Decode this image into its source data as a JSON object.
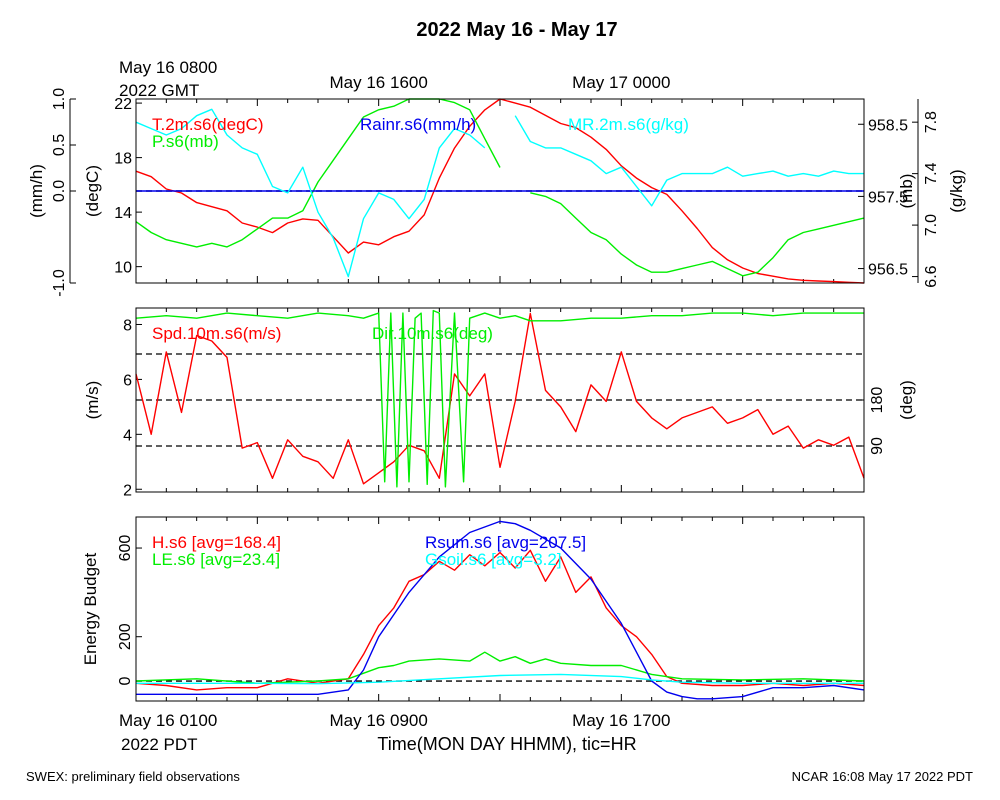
{
  "title": "2022 May 16 - May 17",
  "top_time_labels": [
    {
      "hour": 0,
      "line1": "May 16 0800",
      "line2": "2022 GMT"
    },
    {
      "hour": 8,
      "line1": "May 16 1600",
      "line2": ""
    },
    {
      "hour": 16,
      "line1": "May 17 0000",
      "line2": ""
    }
  ],
  "bottom_time_labels": [
    {
      "hour": 0,
      "line1": "May 16 0100",
      "line2": "2022 PDT"
    },
    {
      "hour": 8,
      "line1": "May 16 0900",
      "line2": ""
    },
    {
      "hour": 16,
      "line1": "May 16 1700",
      "line2": ""
    }
  ],
  "xlabel": "Time(MON DAY HHMM), tic=HR",
  "footer_left": "SWEX: preliminary field observations",
  "footer_right": "NCAR 16:08 May 17 2022 PDT",
  "colors": {
    "red": "#ff0000",
    "green": "#00ee00",
    "blue": "#0000ee",
    "cyan": "#00ffff",
    "black": "#000000"
  },
  "chart_data": [
    {
      "type": "line",
      "panel": "met",
      "x_unit": "hours since May 16 0100 PDT",
      "xlim": [
        0,
        24
      ],
      "axes": {
        "rain": {
          "label": "(mm/h)",
          "lim": [
            -1.0,
            1.0
          ],
          "ticks": [
            -1.0,
            0.0,
            0.5,
            1.0
          ],
          "tick_labels": [
            "-1.0",
            "0.0",
            "0.5",
            "1.0"
          ]
        },
        "temp": {
          "label": "(degC)",
          "lim": [
            8.8,
            22.3
          ],
          "ticks": [
            10,
            14,
            18,
            22
          ],
          "tick_labels": [
            "10",
            "14",
            "18",
            "22"
          ]
        },
        "pres": {
          "label": "(mb)",
          "lim": [
            956.3,
            958.85
          ],
          "ticks": [
            956.5,
            957.5,
            958.5
          ],
          "tick_labels": [
            "956.5",
            "957.5",
            "958.5"
          ]
        },
        "mr": {
          "label": "(g/kg)",
          "lim": [
            6.55,
            7.98
          ],
          "ticks": [
            6.6,
            7.0,
            7.4,
            7.8
          ],
          "tick_labels": [
            "6.6",
            "7.0",
            "7.4",
            "7.8"
          ]
        }
      },
      "series": [
        {
          "name": "T.2m.s6(degC)",
          "color": "red",
          "axis": "temp",
          "x": [
            0,
            0.5,
            1,
            1.5,
            2,
            2.5,
            3,
            3.5,
            4,
            4.5,
            5,
            5.5,
            6,
            6.5,
            7,
            7.5,
            8,
            8.5,
            9,
            9.5,
            10,
            10.5,
            11,
            11.5,
            12,
            12.5,
            13,
            13.5,
            14,
            14.5,
            15,
            15.5,
            16,
            16.5,
            17,
            17.5,
            18,
            18.5,
            19,
            19.5,
            20,
            20.5,
            21,
            21.5,
            22,
            22.5,
            23,
            23.5,
            24
          ],
          "y": [
            17.0,
            16.6,
            15.7,
            15.4,
            14.7,
            14.4,
            14.1,
            13.2,
            12.9,
            12.5,
            13.2,
            13.5,
            13.4,
            12.2,
            11.0,
            11.8,
            11.6,
            12.2,
            12.6,
            13.8,
            16.5,
            18.7,
            20.3,
            21.5,
            22.3,
            22.0,
            21.7,
            21.1,
            20.5,
            20.2,
            19.5,
            18.6,
            17.4,
            16.5,
            15.8,
            15.3,
            14.1,
            12.8,
            11.4,
            10.5,
            9.9,
            9.5,
            9.3,
            9.1,
            9.0,
            8.95,
            8.9,
            8.85,
            8.8
          ]
        },
        {
          "name": "P.s6(mb)",
          "color": "green",
          "axis": "pres",
          "x": [
            0,
            0.5,
            1,
            1.5,
            2,
            2.5,
            3,
            3.5,
            4,
            4.5,
            5,
            5.5,
            6,
            6.5,
            7,
            7.5,
            8,
            8.5,
            9,
            9.5,
            10,
            10.5,
            11,
            11.5,
            12,
            12.5,
            13,
            13.5,
            14,
            14.5,
            15,
            15.5,
            16,
            16.5,
            17,
            17.5,
            18,
            18.5,
            19,
            19.5,
            20,
            20.5,
            21,
            21.5,
            22,
            22.5,
            23,
            23.5,
            24
          ],
          "y": [
            957.15,
            957.0,
            956.9,
            956.85,
            956.8,
            956.85,
            956.8,
            956.9,
            957.05,
            957.2,
            957.2,
            957.3,
            957.7,
            958.0,
            958.3,
            958.6,
            958.7,
            958.75,
            958.85,
            958.85,
            958.85,
            958.8,
            958.7,
            958.3,
            957.9,
            null,
            957.55,
            957.5,
            957.4,
            957.2,
            957.0,
            956.9,
            956.7,
            956.55,
            956.45,
            956.45,
            956.5,
            956.55,
            956.6,
            956.5,
            956.4,
            956.45,
            956.65,
            956.9,
            957.0,
            957.05,
            957.1,
            957.15,
            957.2
          ]
        },
        {
          "name": "Rainr.s6(mm/h)",
          "color": "blue",
          "axis": "rain",
          "x": [
            0,
            24
          ],
          "y": [
            0.0,
            0.0
          ]
        },
        {
          "name": "MR.2m.s6(g/kg)",
          "color": "cyan",
          "axis": "mr",
          "x": [
            0,
            0.5,
            1,
            1.5,
            2,
            2.5,
            3,
            3.5,
            4,
            4.5,
            5,
            5.5,
            6,
            6.5,
            7,
            7.5,
            8,
            8.5,
            9,
            9.5,
            10,
            10.5,
            11,
            11.5,
            12,
            12.5,
            13,
            13.5,
            14,
            14.5,
            15,
            15.5,
            16,
            16.5,
            17,
            17.5,
            18,
            18.5,
            19,
            19.5,
            20,
            20.5,
            21,
            21.5,
            22,
            22.5,
            23,
            23.5,
            24
          ],
          "y": [
            7.8,
            7.75,
            7.7,
            7.75,
            7.85,
            7.9,
            7.7,
            7.6,
            7.55,
            7.3,
            7.25,
            7.45,
            7.1,
            6.9,
            6.6,
            7.05,
            7.25,
            7.2,
            7.05,
            7.2,
            7.6,
            7.75,
            7.7,
            7.6,
            null,
            7.85,
            7.65,
            7.6,
            7.6,
            7.55,
            7.5,
            7.4,
            7.45,
            7.3,
            7.15,
            7.35,
            7.4,
            7.4,
            7.4,
            7.45,
            7.38,
            7.4,
            7.42,
            7.38,
            7.4,
            7.38,
            7.42,
            7.4,
            7.4
          ]
        }
      ]
    },
    {
      "type": "line",
      "panel": "wind",
      "x_unit": "hours since May 16 0100 PDT",
      "xlim": [
        0,
        24
      ],
      "axes": {
        "spd": {
          "label": "(m/s)",
          "lim": [
            1.9,
            8.6
          ],
          "ticks": [
            2,
            4,
            6,
            8
          ],
          "tick_labels": [
            "2",
            "4",
            "6",
            "8"
          ]
        },
        "dir": {
          "label": "(deg)",
          "lim": [
            0,
            360
          ],
          "ticks": [
            90,
            180
          ],
          "tick_labels": [
            "90",
            "180"
          ]
        }
      },
      "reference_lines_deg": [
        90,
        180,
        270
      ],
      "series": [
        {
          "name": "Spd.10m.s6(m/s)",
          "color": "red",
          "axis": "spd",
          "x": [
            0,
            0.5,
            1,
            1.5,
            2,
            2.5,
            3,
            3.5,
            4,
            4.5,
            5,
            5.5,
            6,
            6.5,
            7,
            7.5,
            8,
            8.5,
            9,
            9.5,
            10,
            10.5,
            11,
            11.5,
            12,
            12.5,
            13,
            13.5,
            14,
            14.5,
            15,
            15.5,
            16,
            16.5,
            17,
            17.5,
            18,
            18.5,
            19,
            19.5,
            20,
            20.5,
            21,
            21.5,
            22,
            22.5,
            23,
            23.5,
            24
          ],
          "y": [
            6.2,
            4.0,
            7.0,
            4.8,
            7.6,
            7.4,
            6.8,
            3.5,
            3.7,
            2.4,
            3.8,
            3.2,
            3.0,
            2.4,
            3.8,
            2.2,
            2.6,
            3.0,
            3.6,
            3.4,
            2.4,
            6.2,
            5.4,
            6.2,
            2.8,
            5.2,
            8.4,
            5.6,
            5.0,
            4.1,
            5.8,
            5.2,
            7.0,
            5.2,
            4.6,
            4.2,
            4.6,
            4.8,
            5.0,
            4.4,
            4.6,
            4.9,
            4.0,
            4.3,
            3.5,
            3.8,
            3.6,
            3.9,
            2.4
          ]
        },
        {
          "name": "Dir.10m.s6(deg)",
          "color": "green",
          "axis": "dir",
          "x": [
            0,
            1,
            2,
            3,
            4,
            5,
            6,
            7,
            7.5,
            8,
            8.2,
            8.4,
            8.6,
            8.8,
            9,
            9.2,
            9.4,
            9.6,
            9.8,
            10,
            10.2,
            10.5,
            10.8,
            11,
            11.5,
            12,
            12.5,
            13,
            14,
            15,
            16,
            17,
            18,
            19,
            20,
            21,
            22,
            23,
            24
          ],
          "y": [
            340,
            345,
            340,
            350,
            345,
            340,
            350,
            345,
            340,
            350,
            20,
            350,
            10,
            350,
            20,
            340,
            350,
            15,
            355,
            350,
            10,
            350,
            20,
            340,
            350,
            340,
            345,
            335,
            335,
            340,
            340,
            345,
            345,
            350,
            350,
            345,
            350,
            350,
            350
          ]
        }
      ]
    },
    {
      "type": "line",
      "panel": "energy",
      "x_unit": "hours since May 16 0100 PDT",
      "xlim": [
        0,
        24
      ],
      "axes": {
        "energy": {
          "label": "Energy Budget",
          "lim": [
            -90,
            740
          ],
          "ticks": [
            0,
            200,
            600
          ],
          "tick_labels": [
            "0",
            "200",
            "600"
          ]
        }
      },
      "series": [
        {
          "name": "H.s6 [avg=168.4]",
          "color": "red",
          "axis": "energy",
          "x": [
            0,
            1,
            2,
            3,
            4,
            5,
            6,
            7,
            7.5,
            8,
            8.5,
            9,
            9.5,
            10,
            10.5,
            11,
            11.5,
            12,
            12.5,
            13,
            13.5,
            14,
            14.5,
            15,
            15.5,
            16,
            16.5,
            17,
            17.5,
            18,
            19,
            20,
            21,
            22,
            23,
            24
          ],
          "y": [
            -10,
            -20,
            -40,
            -30,
            -30,
            10,
            -10,
            10,
            120,
            250,
            330,
            450,
            480,
            540,
            500,
            570,
            520,
            580,
            510,
            590,
            450,
            560,
            400,
            470,
            330,
            250,
            200,
            120,
            20,
            -10,
            -20,
            -20,
            -10,
            -20,
            -10,
            -20
          ]
        },
        {
          "name": "LE.s6 [avg=23.4]",
          "color": "green",
          "axis": "energy",
          "x": [
            0,
            2,
            4,
            6,
            7,
            8,
            8.5,
            9,
            10,
            11,
            11.5,
            12,
            12.5,
            13,
            13.5,
            14,
            15,
            16,
            17,
            18,
            20,
            22,
            24
          ],
          "y": [
            0,
            10,
            -10,
            0,
            10,
            60,
            70,
            90,
            100,
            90,
            130,
            90,
            110,
            80,
            100,
            80,
            70,
            70,
            30,
            10,
            5,
            10,
            0
          ]
        },
        {
          "name": "Rsum.s6 [avg=207.5]",
          "color": "blue",
          "axis": "energy",
          "x": [
            0,
            2,
            4,
            6,
            7,
            7.5,
            8,
            9,
            10,
            11,
            12,
            12.5,
            13,
            14,
            15,
            16,
            16.5,
            17,
            17.5,
            18,
            18.5,
            19,
            20,
            21,
            22,
            23,
            24
          ],
          "y": [
            -60,
            -60,
            -60,
            -60,
            -40,
            50,
            200,
            400,
            560,
            670,
            720,
            710,
            680,
            600,
            460,
            260,
            130,
            0,
            -50,
            -70,
            -80,
            -80,
            -70,
            -30,
            -30,
            -20,
            -40
          ]
        },
        {
          "name": "Gsoil.s6 [avg=3.2]",
          "color": "cyan",
          "axis": "energy",
          "x": [
            0,
            4,
            6,
            8,
            10,
            12,
            14,
            16,
            17,
            18,
            20,
            22,
            24
          ],
          "y": [
            -10,
            -10,
            -12,
            -5,
            10,
            25,
            30,
            20,
            5,
            -5,
            -10,
            -10,
            -10
          ]
        }
      ]
    }
  ]
}
